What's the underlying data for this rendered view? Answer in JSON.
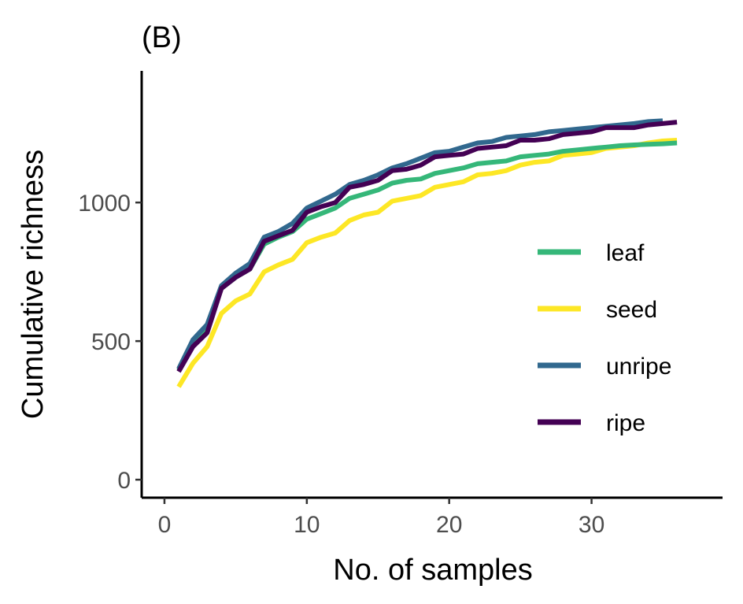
{
  "chart_data": {
    "type": "line",
    "panel_label": "(B)",
    "xlabel": "No. of samples",
    "ylabel": "Cumulative richness",
    "xlim": [
      -1.6,
      39.2
    ],
    "ylim": [
      -65,
      1475
    ],
    "x_ticks": [
      0,
      10,
      20,
      30
    ],
    "y_ticks": [
      0,
      500,
      1000
    ],
    "grid": false,
    "legend_position": "right",
    "series": [
      {
        "name": "leaf",
        "color": "#35b779",
        "x": [
          1,
          2,
          3,
          4,
          5,
          6,
          7,
          8,
          9,
          10,
          11,
          12,
          13,
          14,
          15,
          16,
          17,
          18,
          19,
          20,
          21,
          22,
          23,
          24,
          25,
          26,
          27,
          28,
          29,
          30,
          31,
          32,
          33,
          34,
          35,
          36
        ],
        "values": [
          395,
          490,
          550,
          690,
          730,
          760,
          850,
          875,
          895,
          940,
          960,
          980,
          1015,
          1030,
          1045,
          1070,
          1080,
          1085,
          1105,
          1115,
          1125,
          1140,
          1145,
          1150,
          1165,
          1170,
          1175,
          1185,
          1190,
          1195,
          1200,
          1205,
          1208,
          1210,
          1212,
          1215
        ]
      },
      {
        "name": "seed",
        "color": "#fde725",
        "x": [
          1,
          2,
          3,
          4,
          5,
          6,
          7,
          8,
          9,
          10,
          11,
          12,
          13,
          14,
          15,
          16,
          17,
          18,
          19,
          20,
          21,
          22,
          23,
          24,
          25,
          26,
          27,
          28,
          29,
          30,
          31,
          32,
          33,
          34,
          35,
          36
        ],
        "values": [
          335,
          420,
          480,
          600,
          645,
          670,
          750,
          775,
          795,
          855,
          875,
          890,
          935,
          955,
          965,
          1005,
          1015,
          1025,
          1055,
          1065,
          1075,
          1100,
          1105,
          1115,
          1135,
          1145,
          1150,
          1170,
          1175,
          1180,
          1195,
          1200,
          1205,
          1215,
          1222,
          1225
        ]
      },
      {
        "name": "unripe",
        "color": "#31688e",
        "x": [
          1,
          2,
          3,
          4,
          5,
          6,
          7,
          8,
          9,
          10,
          11,
          12,
          13,
          14,
          15,
          16,
          17,
          18,
          19,
          20,
          21,
          22,
          23,
          24,
          25,
          26,
          27,
          28,
          29,
          30,
          31,
          32,
          33,
          34,
          35
        ],
        "values": [
          400,
          505,
          560,
          700,
          745,
          780,
          875,
          895,
          925,
          980,
          1005,
          1030,
          1065,
          1080,
          1100,
          1125,
          1140,
          1160,
          1180,
          1185,
          1200,
          1215,
          1220,
          1235,
          1240,
          1245,
          1255,
          1260,
          1265,
          1270,
          1275,
          1280,
          1285,
          1292,
          1295
        ]
      },
      {
        "name": "ripe",
        "color": "#440154",
        "x": [
          1,
          2,
          3,
          4,
          5,
          6,
          7,
          8,
          9,
          10,
          11,
          12,
          13,
          14,
          15,
          16,
          17,
          18,
          19,
          20,
          21,
          22,
          23,
          24,
          25,
          26,
          27,
          28,
          29,
          30,
          31,
          32,
          33,
          34,
          35,
          36
        ],
        "values": [
          390,
          480,
          530,
          690,
          730,
          760,
          860,
          880,
          900,
          965,
          985,
          1000,
          1055,
          1065,
          1080,
          1115,
          1120,
          1135,
          1165,
          1170,
          1175,
          1195,
          1200,
          1205,
          1225,
          1225,
          1230,
          1245,
          1250,
          1255,
          1270,
          1270,
          1270,
          1280,
          1285,
          1290
        ]
      }
    ],
    "legend_order": [
      "leaf",
      "seed",
      "unripe",
      "ripe"
    ]
  }
}
